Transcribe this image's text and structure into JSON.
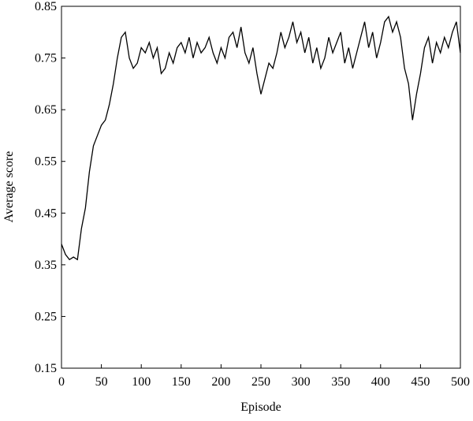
{
  "chart_data": {
    "type": "line",
    "x_label": "Episode",
    "y_label": "Average score",
    "x": [
      0,
      5,
      10,
      15,
      20,
      25,
      30,
      35,
      40,
      45,
      50,
      55,
      60,
      65,
      70,
      75,
      80,
      85,
      90,
      95,
      100,
      105,
      110,
      115,
      120,
      125,
      130,
      135,
      140,
      145,
      150,
      155,
      160,
      165,
      170,
      175,
      180,
      185,
      190,
      195,
      200,
      205,
      210,
      215,
      220,
      225,
      230,
      235,
      240,
      245,
      250,
      255,
      260,
      265,
      270,
      275,
      280,
      285,
      290,
      295,
      300,
      305,
      310,
      315,
      320,
      325,
      330,
      335,
      340,
      345,
      350,
      355,
      360,
      365,
      370,
      375,
      380,
      385,
      390,
      395,
      400,
      405,
      410,
      415,
      420,
      425,
      430,
      435,
      440,
      445,
      450,
      455,
      460,
      465,
      470,
      475,
      480,
      485,
      490,
      495,
      500
    ],
    "series": [
      {
        "name": "Average score",
        "color": "#000000",
        "values": [
          0.39,
          0.37,
          0.36,
          0.365,
          0.36,
          0.42,
          0.46,
          0.53,
          0.58,
          0.6,
          0.62,
          0.63,
          0.66,
          0.7,
          0.75,
          0.79,
          0.8,
          0.75,
          0.73,
          0.74,
          0.77,
          0.76,
          0.78,
          0.75,
          0.77,
          0.72,
          0.73,
          0.76,
          0.74,
          0.77,
          0.78,
          0.76,
          0.79,
          0.75,
          0.78,
          0.76,
          0.77,
          0.79,
          0.76,
          0.74,
          0.77,
          0.75,
          0.79,
          0.8,
          0.77,
          0.81,
          0.76,
          0.74,
          0.77,
          0.72,
          0.68,
          0.71,
          0.74,
          0.73,
          0.76,
          0.8,
          0.77,
          0.79,
          0.82,
          0.78,
          0.8,
          0.76,
          0.79,
          0.74,
          0.77,
          0.73,
          0.75,
          0.79,
          0.76,
          0.78,
          0.8,
          0.74,
          0.77,
          0.73,
          0.76,
          0.79,
          0.82,
          0.77,
          0.8,
          0.75,
          0.78,
          0.82,
          0.83,
          0.8,
          0.82,
          0.79,
          0.73,
          0.7,
          0.63,
          0.68,
          0.72,
          0.77,
          0.79,
          0.74,
          0.78,
          0.76,
          0.79,
          0.77,
          0.8,
          0.82,
          0.76
        ]
      }
    ],
    "xlim": [
      0,
      500
    ],
    "ylim": [
      0.15,
      0.85
    ],
    "xticks": [
      0,
      50,
      100,
      150,
      200,
      250,
      300,
      350,
      400,
      450,
      500
    ],
    "yticks": [
      0.15,
      0.25,
      0.35,
      0.45,
      0.55,
      0.65,
      0.75,
      0.85
    ]
  }
}
